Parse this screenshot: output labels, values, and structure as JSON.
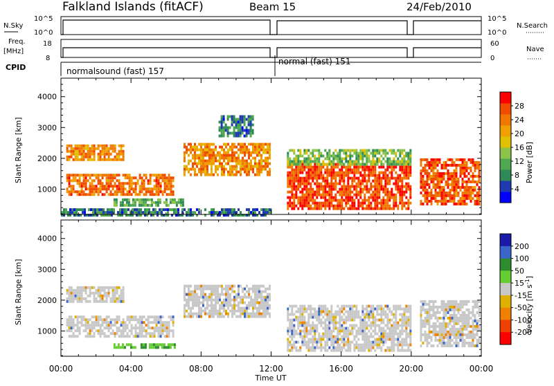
{
  "header": {
    "station": "Falkland Islands (fitACF)",
    "beam": "Beam 15",
    "date": "24/Feb/2010"
  },
  "status_panels": {
    "nsky_label": "N.Sky",
    "nsky_ticks": [
      "10^5",
      "10^0"
    ],
    "nsearch_label": "N.Search",
    "nsearch_ticks": [
      "10^5",
      "10^0"
    ],
    "freq_label": "Freq.",
    "freq_unit": "[MHz]",
    "freq_ticks": [
      "8",
      "18"
    ],
    "nave_label": "Nave",
    "nave_ticks": [
      "60",
      "0"
    ],
    "cpid_label": "CPID",
    "cpid_segments": [
      {
        "start": "00:00",
        "end": "12:00",
        "label": "normalsound (fast) 157"
      },
      {
        "start": "12:00",
        "end": "24:00",
        "label": "normal (fast) 151"
      }
    ]
  },
  "chart_data": [
    {
      "type": "heatmap",
      "name": "power-panel",
      "ylabel": "Slant Range [km]",
      "xlabel": "",
      "x_ticks": [
        "00:00",
        "04:00",
        "08:00",
        "12:00",
        "16:00",
        "20:00",
        "00:00"
      ],
      "x_range_hours": [
        0,
        24
      ],
      "y_ticks": [
        1000,
        2000,
        3000,
        4000
      ],
      "ylim": [
        180,
        4600
      ],
      "colorbar": {
        "label": "Power [dB]",
        "ticks": [
          "4",
          "8",
          "12",
          "16",
          "20",
          "24",
          "28"
        ],
        "range": [
          0,
          30
        ],
        "colors": [
          "#0000ff",
          "#1f3ab0",
          "#2e8b57",
          "#4fa84f",
          "#8bc34a",
          "#e0c000",
          "#f0a000",
          "#f07800",
          "#f04c00",
          "#ff0000"
        ]
      },
      "data_gaps_hours": [
        [
          12.05,
          12.85
        ],
        [
          20.05,
          20.45
        ]
      ],
      "echo_regions": [
        {
          "t0": 0.3,
          "t1": 3.6,
          "r0": 1950,
          "r1": 2450,
          "level": 22
        },
        {
          "t0": 0.3,
          "t1": 6.4,
          "r0": 850,
          "r1": 1500,
          "level": 24
        },
        {
          "t0": 3.0,
          "t1": 7.0,
          "r0": 500,
          "r1": 700,
          "level": 10
        },
        {
          "t0": 7.0,
          "t1": 11.9,
          "r0": 1500,
          "r1": 2500,
          "level": 22
        },
        {
          "t0": 9.0,
          "t1": 11.0,
          "r0": 2700,
          "r1": 3400,
          "level": 6
        },
        {
          "t0": 12.9,
          "t1": 19.9,
          "r0": 400,
          "r1": 1850,
          "level": 27
        },
        {
          "t0": 12.9,
          "t1": 19.9,
          "r0": 1850,
          "r1": 2300,
          "level": 12
        },
        {
          "t0": 20.5,
          "t1": 23.9,
          "r0": 500,
          "r1": 2000,
          "level": 26
        },
        {
          "t0": 0.0,
          "t1": 12.0,
          "r0": 180,
          "r1": 380,
          "level": 6
        }
      ]
    },
    {
      "type": "heatmap",
      "name": "velocity-panel",
      "ylabel": "Slant Range [km]",
      "xlabel": "Time UT",
      "x_ticks": [
        "00:00",
        "04:00",
        "08:00",
        "12:00",
        "16:00",
        "20:00",
        "00:00"
      ],
      "x_range_hours": [
        0,
        24
      ],
      "y_ticks": [
        1000,
        2000,
        3000,
        4000
      ],
      "ylim": [
        180,
        4600
      ],
      "colorbar": {
        "label": "Velocity [m s^-1]",
        "ticks": [
          "200",
          "100",
          "50",
          "15",
          "-15",
          "-50",
          "-100",
          "-200"
        ],
        "range": [
          -250,
          250
        ],
        "colors": [
          "#1a1aaa",
          "#3a66cc",
          "#2e8b2e",
          "#66cc33",
          "#c8c8c8",
          "#e0b000",
          "#f08000",
          "#f04000",
          "#ff0000"
        ]
      },
      "data_gaps_hours": [
        [
          12.05,
          12.85
        ],
        [
          20.05,
          20.45
        ]
      ],
      "echo_regions": [
        {
          "t0": 0.3,
          "t1": 3.6,
          "r0": 1950,
          "r1": 2450,
          "vel": 0
        },
        {
          "t0": 0.3,
          "t1": 6.4,
          "r0": 850,
          "r1": 1500,
          "vel": 0
        },
        {
          "t0": 3.0,
          "t1": 6.5,
          "r0": 450,
          "r1": 600,
          "vel": 40
        },
        {
          "t0": 7.0,
          "t1": 11.9,
          "r0": 1500,
          "r1": 2500,
          "vel": 0
        },
        {
          "t0": 12.9,
          "t1": 19.9,
          "r0": 400,
          "r1": 1850,
          "vel": 0
        },
        {
          "t0": 20.5,
          "t1": 23.9,
          "r0": 500,
          "r1": 2000,
          "vel": 0
        }
      ]
    }
  ]
}
